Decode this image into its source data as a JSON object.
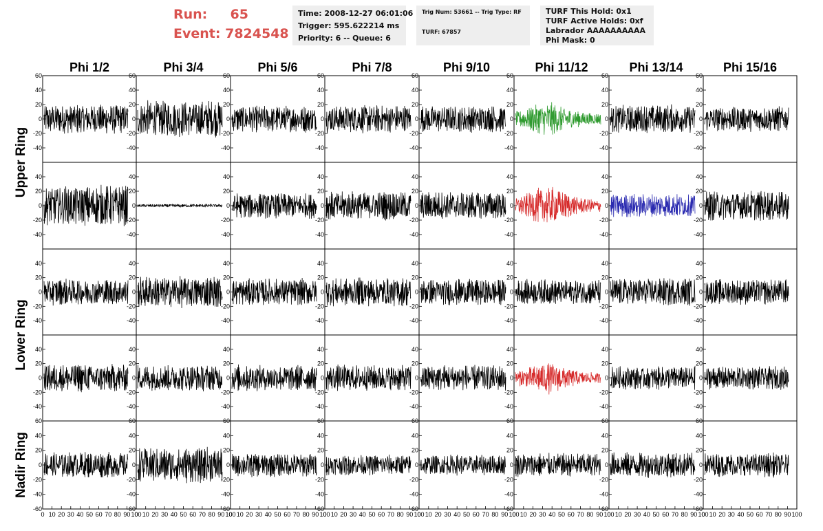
{
  "header": {
    "run_label": "Run:",
    "run_value": "65",
    "event_label": "Event:",
    "event_value": "7824548"
  },
  "info1": {
    "time": "Time: 2008-12-27 06:01:06",
    "trigger": "Trigger: 595.622214 ms",
    "priority": "Priority: 6 -- Queue: 6"
  },
  "info2": {
    "trig": "Trig Num: 53661 -- Trig Type: RF",
    "turf": "TURF: 67857"
  },
  "info3": {
    "hold": "TURF This Hold: 0x1",
    "active": "TURF Active Holds: 0xf",
    "labrador": "Labrador AAAAAAAAAA",
    "phimask": "Phi Mask: 0"
  },
  "colors": {
    "default": "#000000",
    "green": "#2e9a2e",
    "red": "#d62b2b",
    "blue": "#2a2ab0",
    "run_text": "#d9534f"
  },
  "chart_data": {
    "type": "line",
    "columns": [
      "Phi 1/2",
      "Phi 3/4",
      "Phi 5/6",
      "Phi 7/8",
      "Phi 9/10",
      "Phi 11/12",
      "Phi 13/14",
      "Phi 15/16"
    ],
    "ring_labels": [
      "Upper Ring",
      "Lower Ring",
      "Nadir Ring"
    ],
    "ylim": [
      -60,
      60
    ],
    "xlim": [
      0,
      100
    ],
    "yticks_full": [
      "60",
      "40",
      "20",
      "0",
      "-20",
      "-40",
      "-60"
    ],
    "yticks_inner": [
      "40",
      "20",
      "0",
      "-20",
      "-40"
    ],
    "yticks_short": [
      "60",
      "40",
      "20",
      "0",
      "-20",
      "-40"
    ],
    "xticks": [
      "0",
      "10",
      "20",
      "30",
      "40",
      "50",
      "60",
      "70",
      "80",
      "90",
      "100"
    ],
    "samples": 260,
    "waveforms": [
      [
        {
          "amp": 18,
          "color": "default"
        },
        {
          "amp": 22,
          "color": "default"
        },
        {
          "amp": 16,
          "color": "default"
        },
        {
          "amp": 17,
          "color": "default"
        },
        {
          "amp": 16,
          "color": "default"
        },
        {
          "amp": 15,
          "color": "green",
          "burst": true
        },
        {
          "amp": 17,
          "color": "default"
        },
        {
          "amp": 15,
          "color": "default"
        }
      ],
      [
        {
          "amp": 24,
          "color": "default"
        },
        {
          "amp": 1.8,
          "color": "default"
        },
        {
          "amp": 15,
          "color": "default"
        },
        {
          "amp": 17,
          "color": "default"
        },
        {
          "amp": 17,
          "color": "default"
        },
        {
          "amp": 17,
          "color": "red",
          "burst": true
        },
        {
          "amp": 14,
          "color": "blue"
        },
        {
          "amp": 18,
          "color": "default"
        }
      ],
      [
        {
          "amp": 16,
          "color": "default"
        },
        {
          "amp": 19,
          "color": "default"
        },
        {
          "amp": 16,
          "color": "default"
        },
        {
          "amp": 17,
          "color": "default"
        },
        {
          "amp": 16,
          "color": "default"
        },
        {
          "amp": 15,
          "color": "default"
        },
        {
          "amp": 17,
          "color": "default"
        },
        {
          "amp": 15,
          "color": "default"
        }
      ],
      [
        {
          "amp": 17,
          "color": "default"
        },
        {
          "amp": 16,
          "color": "default"
        },
        {
          "amp": 16,
          "color": "default"
        },
        {
          "amp": 16,
          "color": "default"
        },
        {
          "amp": 16,
          "color": "default"
        },
        {
          "amp": 14,
          "color": "red",
          "burst": true
        },
        {
          "amp": 14,
          "color": "default"
        },
        {
          "amp": 14,
          "color": "default"
        }
      ],
      [
        {
          "amp": 15,
          "color": "default"
        },
        {
          "amp": 21,
          "color": "default"
        },
        {
          "amp": 14,
          "color": "default"
        },
        {
          "amp": 12,
          "color": "default"
        },
        {
          "amp": 12,
          "color": "default"
        },
        {
          "amp": 14,
          "color": "default"
        },
        {
          "amp": 15,
          "color": "default"
        },
        {
          "amp": 14,
          "color": "default"
        }
      ]
    ]
  }
}
